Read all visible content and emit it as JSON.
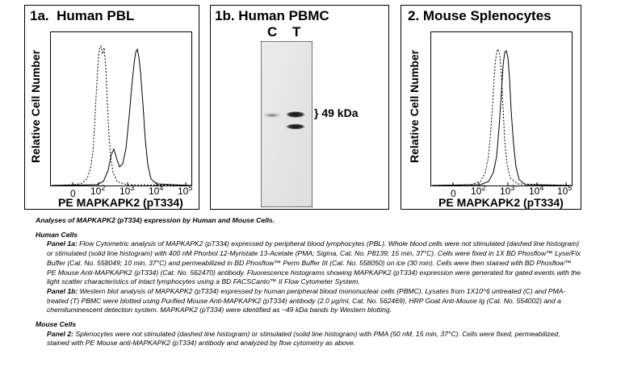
{
  "panel_1a": {
    "title": "1a.  Human PBL",
    "ylabel": "Relative Cell Number",
    "xlabel": "PE MAPKAPK2 (pT334)",
    "x_ticks": [
      {
        "base": "0",
        "exp": ""
      },
      {
        "base": "10",
        "exp": "2"
      },
      {
        "base": "10",
        "exp": "3"
      },
      {
        "base": "10",
        "exp": "4"
      },
      {
        "base": "10",
        "exp": "5"
      }
    ]
  },
  "panel_1b": {
    "title": "1b. Human PBMC",
    "lane_c": "C",
    "lane_t": "T",
    "band_label": "} 49 kDa"
  },
  "panel_2": {
    "title": "2. Mouse Splenocytes",
    "ylabel": "Relative Cell Number",
    "xlabel": "PE MAPKAPK2 (pT334)",
    "x_ticks": [
      {
        "base": "0",
        "exp": ""
      },
      {
        "base": "10",
        "exp": "2"
      },
      {
        "base": "10",
        "exp": "3"
      },
      {
        "base": "10",
        "exp": "4"
      },
      {
        "base": "10",
        "exp": "5"
      }
    ]
  },
  "caption": {
    "heading": "Analyses of MAPKAPK2 (pT334) expression by Human and Mouse Cells.",
    "human_heading": "Human Cells",
    "p1a_label": "Panel 1a:",
    "p1a_text": " Flow Cytometric analysis of MAPKAPK2 (pT334) expressed by peripheral blood lymphocytes (PBL). Whole blood cells were not stimulated (dashed line histogram) or stimulated (solid line histogram) with 400 nM Phorbol 12-Myristate 13-Acetate (PMA; Sigma, Cat. No. P8139; 15 min, 37°C). Cells were fixed in 1X BD Phosflow™ Lyse/Fix Buffer (Cat. No. 558049; 10 min, 37°C) and permeabilized in BD Phosflow™ Perm Buffer III (Cat. No. 558050) on ice (30 min). Cells were then stained with BD Phosflow™ PE Mouse Anti-MAPKAPK2 (pT334) (Cat. No. 562470) antibody. Fluorescence histograms showing MAPKAPK2 (pT334) expression were generated for gated events with the light scatter characteristics of intact lymphocytes using a BD FACSCanto™ II Flow Cytometer System.",
    "p1b_label": "Panel 1b:",
    "p1b_text": " Western blot analysis of MAPKAPK2 (pT334) expressed by human peripheral blood mononuclear cells (PBMC). Lysates from 1X10^6 untreated (C) and PMA-treated (T) PBMC were blotted using Purified Mouse Anti-MAPKAPK2 (pT334) antibody (2.0 µg/ml, Cat. No. 562469), HRP Goat Anti-Mouse Ig (Cat. No. 554002) and a chemiluminescent detection system. MAPKAPK2 (pT334) were identified as ~49 kDa bands by Western blotting.",
    "mouse_heading": "Mouse Cells",
    "p2_label": "Panel 2:",
    "p2_text": " Splenocytes were not stimulated (dashed line histogram) or stimulated (solid line histogram) with PMA (50 nM, 15 min, 37°C). Cells were fixed, permeabilized, stained with PE Mouse anti-MAPKAPK2 (pT334) antibody and analyzed by flow cytometry as above."
  }
}
